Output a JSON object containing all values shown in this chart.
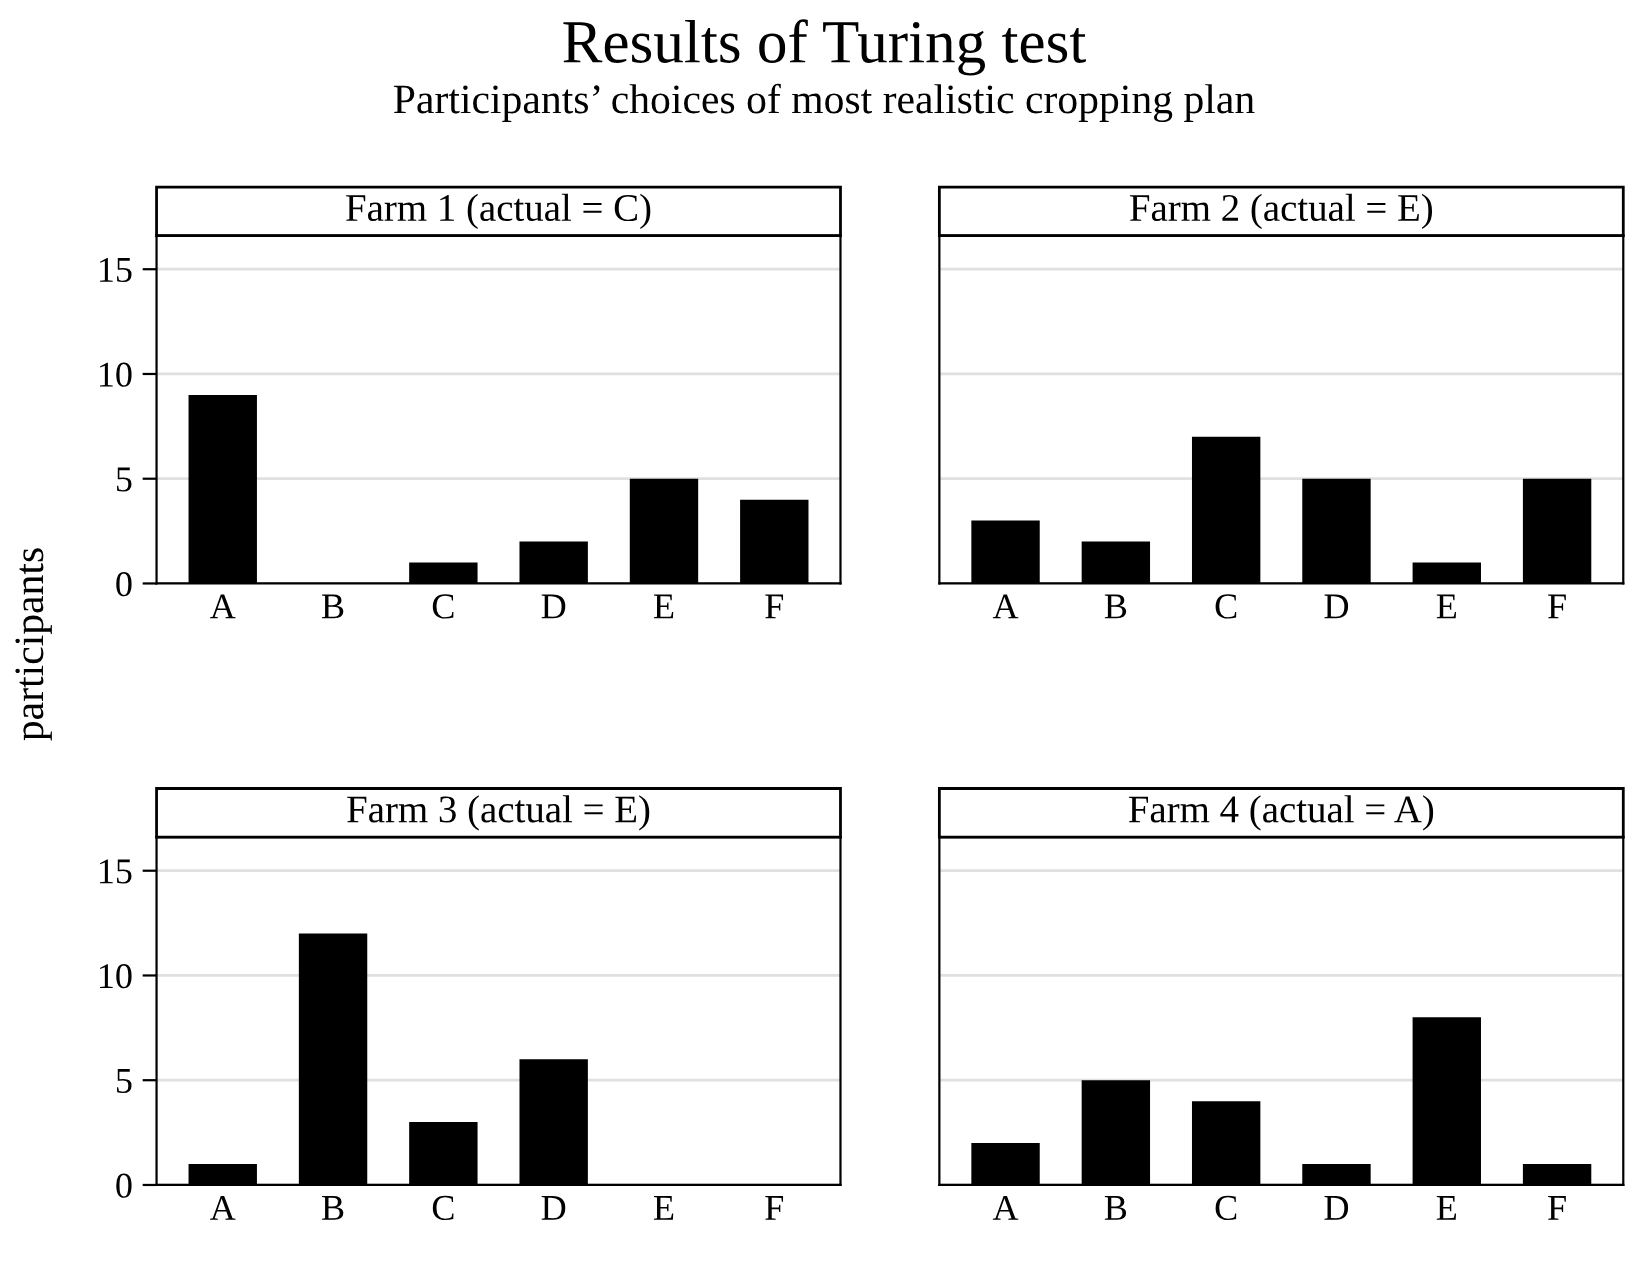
{
  "chart_data": [
    {
      "type": "other",
      "title": "Results of Turing test",
      "subtitle": "Participants’ choices of most realistic cropping plan",
      "ylabel": "participants"
    },
    {
      "type": "bar",
      "title": "Farm 1 (actual = C)",
      "categories": [
        "A",
        "B",
        "C",
        "D",
        "E",
        "F"
      ],
      "values": [
        9,
        0,
        1,
        2,
        5,
        4
      ],
      "color": "#000000",
      "ylim": [
        0,
        16.6
      ],
      "yticks": [
        0,
        5,
        10,
        15
      ],
      "grid": "y"
    },
    {
      "type": "bar",
      "title": "Farm 2 (actual = E)",
      "categories": [
        "A",
        "B",
        "C",
        "D",
        "E",
        "F"
      ],
      "values": [
        3,
        2,
        7,
        5,
        1,
        5
      ],
      "color": "#000000",
      "ylim": [
        0,
        16.6
      ],
      "yticks": [
        0,
        5,
        10,
        15
      ],
      "grid": "y",
      "tick_labels": "x"
    },
    {
      "type": "bar",
      "title": "Farm 3 (actual = E)",
      "categories": [
        "A",
        "B",
        "C",
        "D",
        "E",
        "F"
      ],
      "values": [
        1,
        12,
        3,
        6,
        0,
        0
      ],
      "color": "#000000",
      "ylim": [
        0,
        16.6
      ],
      "yticks": [
        0,
        5,
        10,
        15
      ],
      "grid": "y"
    },
    {
      "type": "bar",
      "title": "Farm 4 (actual = A)",
      "categories": [
        "A",
        "B",
        "C",
        "D",
        "E",
        "F"
      ],
      "values": [
        2,
        5,
        4,
        1,
        8,
        1
      ],
      "color": "#000000",
      "ylim": [
        0,
        16.6
      ],
      "yticks": [
        0,
        5,
        10,
        15
      ],
      "grid": "y",
      "tick_labels": "x"
    }
  ]
}
